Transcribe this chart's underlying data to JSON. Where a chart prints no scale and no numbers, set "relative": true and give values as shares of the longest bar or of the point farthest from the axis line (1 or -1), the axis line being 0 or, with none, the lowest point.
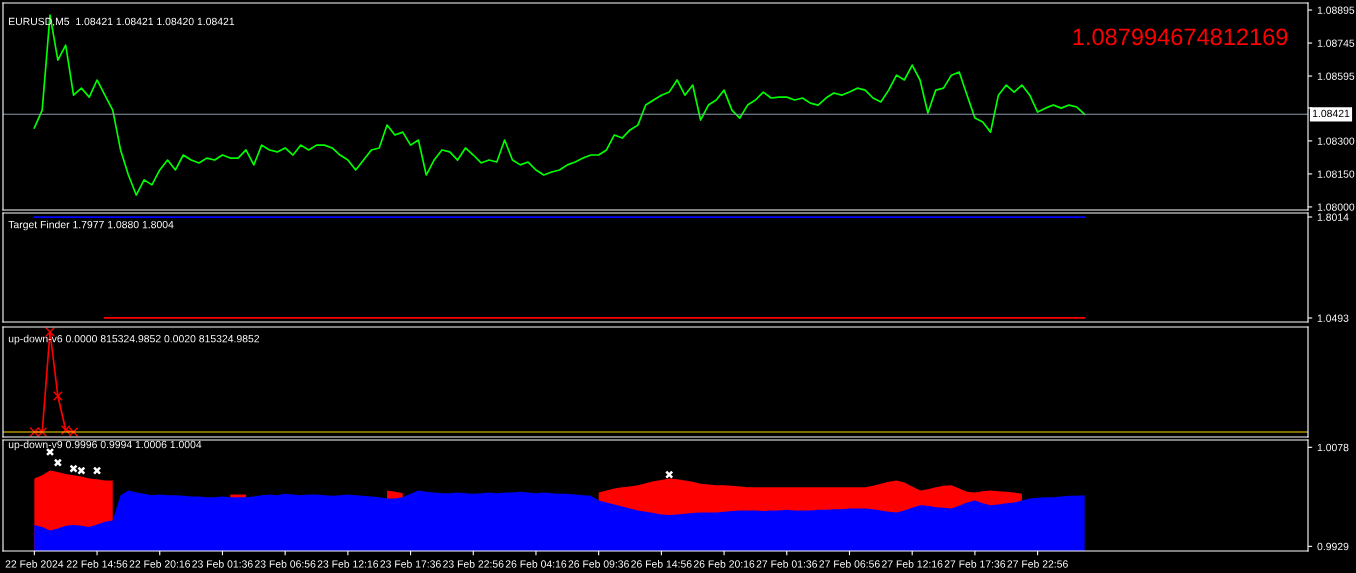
{
  "chart_data": [
    {
      "type": "line",
      "title": "EURUSD,M5  1.08421 1.08421 1.08420 1.08421",
      "annotations": [
        "1.087994674812169"
      ],
      "categories": [
        null,
        null,
        null,
        null,
        null,
        null,
        null,
        null,
        null,
        null,
        null,
        null,
        null,
        null,
        null,
        null,
        null,
        null,
        null,
        null,
        null,
        null,
        null,
        null,
        null,
        null,
        null,
        null,
        null,
        null,
        null,
        null,
        null,
        null,
        null,
        null,
        null,
        null,
        null,
        null,
        null,
        null,
        null,
        null,
        null,
        null,
        null,
        null,
        null,
        null,
        null,
        null,
        null,
        null,
        null,
        null,
        null,
        null,
        null,
        null,
        null,
        null,
        null,
        null,
        null,
        null,
        null,
        null,
        null,
        null,
        null,
        null,
        null,
        null,
        null,
        null,
        null,
        null,
        null,
        null,
        null,
        null,
        null,
        null,
        null,
        null,
        null,
        null,
        null,
        null,
        null,
        null,
        null,
        null,
        null,
        null,
        null,
        null,
        null,
        null,
        null,
        null,
        null,
        null,
        null,
        null,
        null,
        null,
        null,
        null,
        null,
        null,
        null,
        null,
        null,
        null,
        null,
        null,
        null,
        null,
        null,
        null,
        null,
        null,
        null,
        null,
        null,
        null,
        null,
        null,
        null,
        null,
        null,
        null,
        null,
        null,
        null,
        null,
        null,
        null,
        null,
        null,
        null,
        null,
        null,
        null,
        null,
        null,
        null,
        null,
        null,
        null,
        null,
        null,
        null,
        null,
        null,
        null,
        null,
        null,
        null,
        null,
        null
      ],
      "ylim": [
        1.07986,
        1.08927
      ],
      "yticks": [
        {
          "value": 1.08895,
          "label": "1.08895"
        },
        {
          "value": 1.08745,
          "label": "1.08745"
        },
        {
          "value": 1.08595,
          "label": "1.08595"
        },
        {
          "value": 1.0845,
          "label": null
        },
        {
          "value": 1.083,
          "label": "1.08300"
        },
        {
          "value": 1.0815,
          "label": "1.08150"
        },
        {
          "value": 1.08,
          "label": "1.08000"
        }
      ],
      "tick_labels": "y",
      "ref_lines": [
        {
          "axis": "y",
          "value": 1.08421,
          "label": "1.08421",
          "color": "#8a9aaa"
        }
      ],
      "series": [
        {
          "color": "#00ff00",
          "values": [
            1.08359,
            1.0844,
            1.08872,
            1.08667,
            1.08735,
            1.08508,
            1.0854,
            1.08499,
            1.08577,
            1.08508,
            1.0844,
            1.08259,
            1.08145,
            1.08054,
            1.08123,
            1.081,
            1.08168,
            1.08213,
            1.08168,
            1.08236,
            1.08213,
            1.082,
            1.08222,
            1.08213,
            1.08236,
            1.08222,
            1.08222,
            1.08259,
            1.08191,
            1.08281,
            1.08259,
            1.0825,
            1.08268,
            1.08236,
            1.08281,
            1.08259,
            1.08281,
            1.08281,
            1.08268,
            1.08236,
            1.08213,
            1.08168,
            1.08213,
            1.08259,
            1.08268,
            1.08372,
            1.08327,
            1.0834,
            1.08281,
            1.08304,
            1.08145,
            1.08213,
            1.08259,
            1.0825,
            1.08213,
            1.08268,
            1.08236,
            1.082,
            1.08213,
            1.08204,
            1.08304,
            1.08213,
            1.08191,
            1.08204,
            1.08168,
            1.08145,
            1.08159,
            1.08168,
            1.08191,
            1.08204,
            1.08222,
            1.08236,
            1.08236,
            1.08259,
            1.08327,
            1.08313,
            1.0835,
            1.08372,
            1.08463,
            1.08486,
            1.08508,
            1.08522,
            1.08577,
            1.08508,
            1.08554,
            1.08395,
            1.08463,
            1.08486,
            1.08531,
            1.0844,
            1.08404,
            1.08463,
            1.08486,
            1.08522,
            1.08495,
            1.08499,
            1.08499,
            1.08486,
            1.08495,
            1.08472,
            1.08463,
            1.08495,
            1.08518,
            1.08508,
            1.08522,
            1.0854,
            1.08531,
            1.08495,
            1.08477,
            1.08531,
            1.08599,
            1.08577,
            1.08645,
            1.08577,
            1.08427,
            1.08531,
            1.0854,
            1.08599,
            1.08613,
            1.08508,
            1.08404,
            1.08386,
            1.0834,
            1.08508,
            1.08554,
            1.08522,
            1.08554,
            1.08508,
            1.08431,
            1.08449,
            1.08463,
            1.08449,
            1.08463,
            1.08454,
            1.08421,
            null,
            null,
            null,
            null,
            null,
            null,
            null,
            null,
            null,
            null,
            null,
            null,
            null,
            null,
            null,
            null,
            null,
            null,
            null,
            null,
            null,
            null,
            null,
            null,
            null,
            null,
            null,
            null
          ]
        }
      ]
    },
    {
      "type": "line",
      "title": "Target Finder 1.7977 1.0880 1.8004",
      "categories": [
        null,
        null,
        null,
        null,
        null,
        null,
        null,
        null,
        null,
        null,
        null,
        null,
        null,
        null,
        null,
        null,
        null,
        null,
        null,
        null,
        null,
        null,
        null,
        null,
        null,
        null,
        null,
        null,
        null,
        null,
        null,
        null,
        null,
        null,
        null,
        null,
        null,
        null,
        null,
        null,
        null,
        null,
        null,
        null,
        null,
        null,
        null,
        null,
        null,
        null,
        null,
        null,
        null,
        null,
        null,
        null,
        null,
        null,
        null,
        null,
        null,
        null,
        null,
        null,
        null,
        null,
        null,
        null,
        null,
        null,
        null,
        null,
        null,
        null,
        null,
        null,
        null,
        null,
        null,
        null,
        null,
        null,
        null,
        null,
        null,
        null,
        null,
        null,
        null,
        null,
        null,
        null,
        null,
        null,
        null,
        null,
        null,
        null,
        null,
        null,
        null,
        null,
        null,
        null,
        null,
        null,
        null,
        null,
        null,
        null,
        null,
        null,
        null,
        null,
        null,
        null,
        null,
        null,
        null,
        null,
        null,
        null,
        null,
        null,
        null,
        null,
        null,
        null,
        null,
        null,
        null,
        null,
        null,
        null,
        null,
        null,
        null,
        null,
        null,
        null,
        null,
        null,
        null,
        null,
        null,
        null,
        null,
        null,
        null,
        null,
        null,
        null,
        null,
        null,
        null,
        null,
        null,
        null,
        null,
        null,
        null,
        null,
        null
      ],
      "ylim": [
        1.0195,
        1.8312
      ],
      "yticks": [
        1.8014,
        1.0493
      ],
      "tick_labels": "y",
      "series": [
        {
          "color": "#0000ff",
          "values": [
            1.8,
            1.8,
            1.8,
            1.8,
            1.8,
            1.8,
            1.8,
            1.8,
            1.8,
            1.8,
            1.8,
            1.8,
            1.8,
            1.8,
            1.8,
            1.8,
            1.8,
            1.8,
            1.8,
            1.8,
            1.8,
            1.8,
            1.8,
            1.8,
            1.8,
            1.8,
            1.8,
            1.8,
            1.8,
            1.8,
            1.8,
            1.8,
            1.8,
            1.8,
            1.8,
            1.8,
            1.8,
            1.8,
            1.8,
            1.8,
            1.8,
            1.8,
            1.8,
            1.8,
            1.8,
            1.8,
            1.8,
            1.8,
            1.8,
            1.8,
            1.8,
            1.8,
            1.8,
            1.8,
            1.8,
            1.8,
            1.8,
            1.8,
            1.8,
            1.8,
            1.8,
            1.8,
            1.8,
            1.8,
            1.8,
            1.8,
            1.8,
            1.8,
            1.8,
            1.8,
            1.8,
            1.8,
            1.8,
            1.8,
            1.8,
            1.8,
            1.8,
            1.8,
            1.8,
            1.8,
            1.8,
            1.8,
            1.8,
            1.8,
            1.8,
            1.8,
            1.8,
            1.8,
            1.8,
            1.8,
            1.8,
            1.8,
            1.8,
            1.8,
            1.8,
            1.8,
            1.8,
            1.8,
            1.8,
            1.8,
            1.8,
            1.8,
            1.8,
            1.8,
            1.8,
            1.8,
            1.8,
            1.8,
            1.8,
            1.8,
            1.8,
            1.8,
            1.8,
            1.8,
            1.8,
            1.8,
            1.8,
            1.8,
            1.8,
            1.8,
            1.8,
            1.8,
            1.8,
            1.8,
            1.8,
            1.8,
            1.8,
            1.8,
            1.8,
            1.8,
            1.8,
            1.8,
            1.8,
            1.8,
            1.8,
            null,
            null,
            null,
            null,
            null,
            null,
            null,
            null,
            null,
            null,
            null,
            null,
            null,
            null,
            null,
            null,
            null,
            null,
            null,
            null,
            null,
            null,
            null,
            null,
            null,
            null,
            null,
            null
          ]
        },
        {
          "color": "#ff0000",
          "values": [
            null,
            null,
            null,
            null,
            null,
            null,
            null,
            null,
            null,
            1.05,
            1.05,
            1.05,
            1.05,
            1.05,
            1.05,
            1.05,
            1.05,
            1.05,
            1.05,
            1.05,
            1.05,
            1.05,
            1.05,
            1.05,
            1.05,
            1.05,
            1.05,
            1.05,
            1.05,
            1.05,
            1.05,
            1.05,
            1.05,
            1.05,
            1.05,
            1.05,
            1.05,
            1.05,
            1.05,
            1.05,
            1.05,
            1.05,
            1.05,
            1.05,
            1.05,
            1.05,
            1.05,
            1.05,
            1.05,
            1.05,
            1.05,
            1.05,
            1.05,
            1.05,
            1.05,
            1.05,
            1.05,
            1.05,
            1.05,
            1.05,
            1.05,
            1.05,
            1.05,
            1.05,
            1.05,
            1.05,
            1.05,
            1.05,
            1.05,
            1.05,
            1.05,
            1.05,
            1.05,
            1.05,
            1.05,
            1.05,
            1.05,
            1.05,
            1.05,
            1.05,
            1.05,
            1.05,
            1.05,
            1.05,
            1.05,
            1.05,
            1.05,
            1.05,
            1.05,
            1.05,
            1.05,
            1.05,
            1.05,
            1.05,
            1.05,
            1.05,
            1.05,
            1.05,
            1.05,
            1.05,
            1.05,
            1.05,
            1.05,
            1.05,
            1.05,
            1.05,
            1.05,
            1.05,
            1.05,
            1.05,
            1.05,
            1.05,
            1.05,
            1.05,
            1.05,
            1.05,
            1.05,
            1.05,
            1.05,
            1.05,
            1.05,
            1.05,
            1.05,
            1.05,
            1.05,
            1.05,
            1.05,
            1.05,
            1.05,
            1.05,
            1.05,
            1.05,
            1.05,
            1.05,
            1.05,
            null,
            null,
            null,
            null,
            null,
            null,
            null,
            null,
            null,
            null,
            null,
            null,
            null,
            null,
            null,
            null,
            null,
            null,
            null,
            null,
            null,
            null,
            null,
            null,
            null,
            null,
            null,
            null
          ]
        }
      ]
    },
    {
      "type": "line",
      "title": "up-down-v6 0.0000 815324.9852 0.0020 815324.9852",
      "relative": true,
      "tick_labels": false,
      "categories": [
        null,
        null,
        null,
        null,
        null,
        null,
        null,
        null,
        null,
        null,
        null,
        null,
        null,
        null,
        null,
        null,
        null,
        null,
        null,
        null,
        null,
        null,
        null,
        null,
        null,
        null,
        null,
        null,
        null,
        null,
        null,
        null,
        null,
        null,
        null,
        null,
        null,
        null,
        null,
        null,
        null,
        null,
        null,
        null,
        null,
        null,
        null,
        null,
        null,
        null,
        null,
        null,
        null,
        null,
        null,
        null,
        null,
        null,
        null,
        null,
        null,
        null,
        null,
        null,
        null,
        null,
        null,
        null,
        null,
        null,
        null,
        null,
        null,
        null,
        null,
        null,
        null,
        null,
        null,
        null,
        null,
        null,
        null,
        null,
        null,
        null,
        null,
        null,
        null,
        null,
        null,
        null,
        null,
        null,
        null,
        null,
        null,
        null,
        null,
        null,
        null,
        null,
        null,
        null,
        null,
        null,
        null,
        null,
        null,
        null,
        null,
        null,
        null,
        null,
        null,
        null,
        null,
        null,
        null,
        null,
        null,
        null,
        null,
        null,
        null,
        null,
        null,
        null,
        null,
        null,
        null,
        null,
        null,
        null,
        null,
        null,
        null,
        null,
        null,
        null,
        null,
        null,
        null,
        null,
        null,
        null,
        null,
        null,
        null,
        null,
        null,
        null,
        null,
        null,
        null,
        null,
        null,
        null,
        null,
        null,
        null,
        null,
        null
      ],
      "ref_lines": [
        {
          "axis": "y",
          "value": 0,
          "color": "#ffd700"
        }
      ],
      "series": [
        {
          "color": "#ff0000",
          "marker": "cross",
          "values": [
            0,
            0,
            1,
            0.36,
            0.02,
            0,
            null,
            null,
            null,
            null,
            null,
            null,
            null,
            null,
            null,
            null,
            null,
            null,
            null,
            null,
            null,
            null,
            null,
            null,
            null,
            null,
            null,
            null,
            null,
            null,
            null,
            null,
            null,
            null,
            null,
            null,
            null,
            null,
            null,
            null,
            null,
            null,
            null,
            null,
            null,
            null,
            null,
            null,
            null,
            null,
            null,
            null,
            null,
            null,
            null,
            null,
            null,
            null,
            null,
            null,
            null,
            null,
            null,
            null,
            null,
            null,
            null,
            null,
            null,
            null,
            null,
            null,
            null,
            null,
            null,
            null,
            null,
            null,
            null,
            null,
            null,
            null,
            null,
            null,
            null,
            null,
            null,
            null,
            null,
            null,
            null,
            null,
            null,
            null,
            null,
            null,
            null,
            null,
            null,
            null,
            null,
            null,
            null,
            null,
            null,
            null,
            null,
            null,
            null,
            null,
            null,
            null,
            null,
            null,
            null,
            null,
            null,
            null,
            null,
            null,
            null,
            null,
            null,
            null,
            null,
            null,
            null,
            null,
            null,
            null,
            null,
            null,
            null,
            null,
            null,
            null,
            null,
            null,
            null,
            null,
            null,
            null,
            null,
            null,
            null,
            null,
            null,
            null,
            null,
            null,
            null,
            null,
            null,
            null,
            null,
            null,
            null,
            null,
            null,
            null,
            null,
            null,
            null
          ]
        }
      ]
    },
    {
      "type": "area",
      "title": "up-down-v9 0.9996 0.9994 1.0006 1.0004",
      "ylim": [
        0.9922,
        1.0089
      ],
      "yticks": [
        1.0078,
        0.9929
      ],
      "categories": [
        "22 Feb 2024",
        null,
        null,
        null,
        null,
        null,
        null,
        null,
        "22 Feb 14:56",
        null,
        null,
        null,
        null,
        null,
        null,
        null,
        "22 Feb 20:16",
        null,
        null,
        null,
        null,
        null,
        null,
        null,
        "23 Feb 01:36",
        null,
        null,
        null,
        null,
        null,
        null,
        null,
        "23 Feb 06:56",
        null,
        null,
        null,
        null,
        null,
        null,
        null,
        "23 Feb 12:16",
        null,
        null,
        null,
        null,
        null,
        null,
        null,
        "23 Feb 17:36",
        null,
        null,
        null,
        null,
        null,
        null,
        null,
        "23 Feb 22:56",
        null,
        null,
        null,
        null,
        null,
        null,
        null,
        "26 Feb 04:16",
        null,
        null,
        null,
        null,
        null,
        null,
        null,
        "26 Feb 09:36",
        null,
        null,
        null,
        null,
        null,
        null,
        null,
        "26 Feb 14:56",
        null,
        null,
        null,
        null,
        null,
        null,
        null,
        "26 Feb 20:16",
        null,
        null,
        null,
        null,
        null,
        null,
        null,
        "27 Feb 01:36",
        null,
        null,
        null,
        null,
        null,
        null,
        null,
        "27 Feb 06:56",
        null,
        null,
        null,
        null,
        null,
        null,
        null,
        "27 Feb 12:16",
        null,
        null,
        null,
        null,
        null,
        null,
        null,
        "27 Feb 17:36",
        null,
        null,
        null,
        null,
        null,
        null,
        null,
        "27 Feb 22:56",
        null,
        null,
        null,
        null,
        null,
        null,
        null,
        null,
        null,
        null,
        null,
        null,
        null,
        null,
        null,
        null,
        null,
        null,
        null,
        null,
        null,
        null,
        null,
        null,
        null,
        null,
        null,
        null,
        null,
        null,
        null,
        null,
        null,
        null
      ],
      "series": [
        {
          "color": "#ff0000",
          "values": [
            1.0031,
            1.0036,
            1.0043,
            1.0041,
            1.0038,
            1.0036,
            1.0034,
            1.0031,
            1.003,
            1.0028,
            1.0028,
            null,
            null,
            null,
            null,
            null,
            null,
            null,
            null,
            null,
            null,
            null,
            null,
            null,
            null,
            1.0007,
            1.0007,
            1.0007,
            null,
            null,
            null,
            null,
            null,
            null,
            null,
            null,
            null,
            null,
            null,
            null,
            null,
            null,
            null,
            null,
            null,
            1.0013,
            1.0011,
            1.0009,
            null,
            null,
            null,
            null,
            null,
            null,
            null,
            null,
            null,
            null,
            null,
            null,
            null,
            null,
            null,
            null,
            null,
            null,
            null,
            null,
            null,
            null,
            null,
            null,
            1.001,
            1.0013,
            1.0016,
            1.0018,
            1.0019,
            1.0021,
            1.0024,
            1.0027,
            1.0029,
            1.0031,
            1.003,
            1.0028,
            1.0026,
            1.0023,
            1.0022,
            1.0021,
            1.0021,
            1.002,
            1.0019,
            1.0018,
            1.0018,
            1.0018,
            1.0018,
            1.0018,
            1.0018,
            1.0018,
            1.0018,
            1.0018,
            1.0018,
            1.0018,
            1.0018,
            1.0018,
            1.0018,
            1.0018,
            1.0018,
            1.002,
            1.0023,
            1.0026,
            1.0028,
            1.0025,
            1.0019,
            1.0013,
            1.0015,
            1.0018,
            1.002,
            1.0021,
            1.0016,
            1.0011,
            1.001,
            1.0012,
            1.0013,
            1.0012,
            1.0011,
            1.001,
            1.0008,
            null,
            null,
            null,
            null,
            null,
            null,
            null,
            null,
            null,
            null,
            null,
            null,
            null,
            null,
            null,
            null,
            null,
            null,
            null,
            null,
            null,
            null,
            null,
            null,
            null,
            null,
            null,
            null,
            null,
            null,
            null,
            null,
            null,
            null,
            null,
            null
          ]
        },
        {
          "color": "#0000ff",
          "values": [
            0.9961,
            0.9958,
            0.9953,
            0.9956,
            0.996,
            0.9961,
            0.996,
            0.9958,
            0.9962,
            0.9966,
            0.9968,
            1.0006,
            1.0013,
            1.001,
            1.0008,
            1.0006,
            1.0007,
            1.0006,
            1.0006,
            1.0005,
            1.0004,
            1.0004,
            1.0003,
            1.0003,
            1.0004,
            1.0003,
            1.0003,
            1.0003,
            1.0004,
            1.0006,
            1.0007,
            1.0006,
            1.0008,
            1.0007,
            1.0006,
            1.0007,
            1.0007,
            1.0006,
            1.0005,
            1.0006,
            1.0007,
            1.0006,
            1.0005,
            1.0004,
            1.0003,
            1.0001,
            1.0001,
            1.0003,
            1.0008,
            1.0013,
            1.0011,
            1.001,
            1.0009,
            1.0009,
            1.001,
            1.0009,
            1.0008,
            1.0009,
            1.001,
            1.0009,
            1.001,
            1.001,
            1.0011,
            1.001,
            1.0009,
            1.001,
            1.0009,
            1.0008,
            1.0008,
            1.0007,
            1.0006,
            1.0005,
            0.9998,
            0.9995,
            0.9992,
            0.9989,
            0.9986,
            0.9983,
            0.9981,
            0.9979,
            0.9977,
            0.9976,
            0.9977,
            0.9978,
            0.9979,
            0.998,
            0.998,
            0.998,
            0.9981,
            0.9982,
            0.9983,
            0.9983,
            0.9983,
            0.9982,
            0.9983,
            0.9983,
            0.9984,
            0.9983,
            0.9983,
            0.9983,
            0.9984,
            0.9984,
            0.9985,
            0.9985,
            0.9986,
            0.9986,
            0.9986,
            0.9985,
            0.9983,
            0.9981,
            0.998,
            0.9983,
            0.9987,
            0.9991,
            0.999,
            0.9988,
            0.9987,
            0.9986,
            0.999,
            0.9995,
            0.9998,
            0.9994,
            0.9991,
            0.9992,
            0.9994,
            0.9995,
            0.9998,
            1.0001,
            1.0002,
            1.0003,
            1.0003,
            1.0004,
            1.0005,
            1.0005,
            1.0006,
            null,
            null,
            null,
            null,
            null,
            null,
            null,
            null,
            null,
            null,
            null,
            null,
            null,
            null,
            null,
            null,
            null,
            null,
            null,
            null,
            null,
            null,
            null,
            null,
            null,
            null,
            null,
            null
          ]
        },
        {
          "type": "scatter",
          "marker": "cross",
          "color": "#ffffff",
          "values": [
            null,
            null,
            1.0071,
            1.0055,
            null,
            1.0046,
            1.0043,
            null,
            1.0043,
            null,
            null,
            null,
            null,
            null,
            null,
            null,
            null,
            null,
            null,
            null,
            null,
            null,
            null,
            null,
            null,
            null,
            null,
            null,
            null,
            null,
            null,
            null,
            null,
            null,
            null,
            null,
            null,
            null,
            null,
            null,
            null,
            null,
            null,
            null,
            null,
            null,
            null,
            null,
            null,
            null,
            null,
            null,
            null,
            null,
            null,
            null,
            null,
            null,
            null,
            null,
            null,
            null,
            null,
            null,
            null,
            null,
            null,
            null,
            null,
            null,
            null,
            null,
            null,
            null,
            null,
            null,
            null,
            null,
            null,
            null,
            null,
            1.0037,
            null,
            null,
            null,
            null,
            null,
            null,
            null,
            null,
            null,
            null,
            null,
            null,
            null,
            null,
            null,
            null,
            null,
            null,
            null,
            null,
            null,
            null,
            null,
            null,
            null,
            null,
            null,
            null,
            null,
            null,
            null,
            null,
            null,
            null,
            null,
            null,
            null,
            null,
            null,
            null,
            null,
            null,
            null,
            null,
            null,
            null,
            null,
            null,
            null,
            null,
            null,
            null,
            null,
            null,
            null,
            null,
            null,
            null,
            null,
            null,
            null,
            null,
            null,
            null,
            null,
            null,
            null,
            null,
            null,
            null,
            null,
            null,
            null,
            null,
            null,
            null,
            null,
            null,
            null,
            null,
            null
          ]
        }
      ]
    }
  ]
}
